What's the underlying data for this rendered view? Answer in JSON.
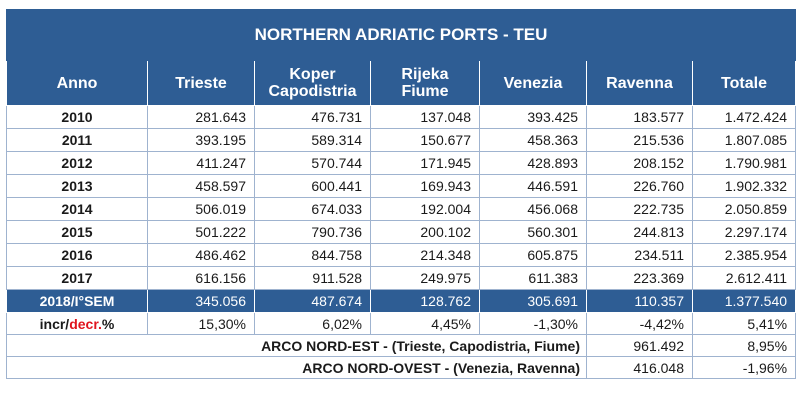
{
  "title": "NORTHERN ADRIATIC PORTS - TEU",
  "headers": {
    "anno": "Anno",
    "trieste": "Trieste",
    "koper_l1": "Koper",
    "koper_l2": "Capodistria",
    "rijeka_l1": "Rijeka",
    "rijeka_l2": "Fiume",
    "venezia": "Venezia",
    "ravenna": "Ravenna",
    "totale": "Totale"
  },
  "rows": [
    {
      "year": "2010",
      "trieste": "281.643",
      "koper": "476.731",
      "rijeka": "137.048",
      "venezia": "393.425",
      "ravenna": "183.577",
      "totale": "1.472.424"
    },
    {
      "year": "2011",
      "trieste": "393.195",
      "koper": "589.314",
      "rijeka": "150.677",
      "venezia": "458.363",
      "ravenna": "215.536",
      "totale": "1.807.085"
    },
    {
      "year": "2012",
      "trieste": "411.247",
      "koper": "570.744",
      "rijeka": "171.945",
      "venezia": "428.893",
      "ravenna": "208.152",
      "totale": "1.790.981"
    },
    {
      "year": "2013",
      "trieste": "458.597",
      "koper": "600.441",
      "rijeka": "169.943",
      "venezia": "446.591",
      "ravenna": "226.760",
      "totale": "1.902.332"
    },
    {
      "year": "2014",
      "trieste": "506.019",
      "koper": "674.033",
      "rijeka": "192.004",
      "venezia": "456.068",
      "ravenna": "222.735",
      "totale": "2.050.859"
    },
    {
      "year": "2015",
      "trieste": "501.222",
      "koper": "790.736",
      "rijeka": "200.102",
      "venezia": "560.301",
      "ravenna": "244.813",
      "totale": "2.297.174"
    },
    {
      "year": "2016",
      "trieste": "486.462",
      "koper": "844.758",
      "rijeka": "214.348",
      "venezia": "605.875",
      "ravenna": "234.511",
      "totale": "2.385.954"
    },
    {
      "year": "2017",
      "trieste": "616.156",
      "koper": "911.528",
      "rijeka": "249.975",
      "venezia": "611.383",
      "ravenna": "223.369",
      "totale": "2.612.411"
    }
  ],
  "semester": {
    "year": "2018/I°SEM",
    "trieste": "345.056",
    "koper": "487.674",
    "rijeka": "128.762",
    "venezia": "305.691",
    "ravenna": "110.357",
    "totale": "1.377.540"
  },
  "change": {
    "label_incr": "incr/",
    "label_decr": "decr.",
    "label_pct": "%",
    "trieste": "15,30%",
    "koper": "6,02%",
    "rijeka": "4,45%",
    "venezia": "-1,30%",
    "ravenna": "-4,42%",
    "totale": "5,41%"
  },
  "arco_nord_est": {
    "label": "ARCO NORD-EST - (Trieste, Capodistria, Fiume)",
    "teu": "961.492",
    "pct": "8,95%"
  },
  "arco_nord_ovest": {
    "label": "ARCO NORD-OVEST - (Venezia, Ravenna)",
    "teu": "416.048",
    "pct": "-1,96%"
  },
  "colors": {
    "header_blue": "#2e5d94",
    "negative_red": "#e0141e"
  }
}
